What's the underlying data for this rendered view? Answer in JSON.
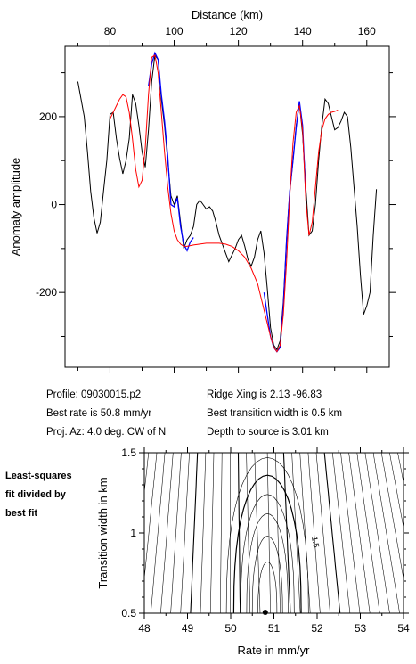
{
  "chart_data": [
    {
      "type": "line",
      "xlabel": "Distance (km)",
      "ylabel": "Anomaly amplitude",
      "xticks": [
        80,
        100,
        120,
        140,
        160
      ],
      "yticks": [
        200,
        0,
        -200
      ],
      "xlim": [
        66,
        167
      ],
      "ylim": [
        -370,
        360
      ],
      "x_axis_position": "top",
      "grid": false,
      "series": [
        {
          "color": "#000000",
          "points": [
            [
              70,
              280
            ],
            [
              72,
              200
            ],
            [
              73,
              120
            ],
            [
              74,
              30
            ],
            [
              75,
              -30
            ],
            [
              76,
              -65
            ],
            [
              77,
              -40
            ],
            [
              78,
              30
            ],
            [
              79,
              100
            ],
            [
              80,
              205
            ],
            [
              81,
              210
            ],
            [
              82,
              150
            ],
            [
              83,
              105
            ],
            [
              84,
              70
            ],
            [
              85,
              100
            ],
            [
              86,
              150
            ],
            [
              87,
              250
            ],
            [
              88,
              230
            ],
            [
              89,
              180
            ],
            [
              90,
              120
            ],
            [
              91,
              85
            ],
            [
              92,
              170
            ],
            [
              93,
              280
            ],
            [
              94,
              340
            ],
            [
              95,
              330
            ],
            [
              96,
              240
            ],
            [
              97,
              180
            ],
            [
              98,
              100
            ],
            [
              99,
              20
            ],
            [
              100,
              0
            ],
            [
              101,
              20
            ],
            [
              102,
              -40
            ],
            [
              103,
              -100
            ],
            [
              104,
              -80
            ],
            [
              105,
              -70
            ],
            [
              106,
              -50
            ],
            [
              107,
              0
            ],
            [
              108,
              10
            ],
            [
              109,
              0
            ],
            [
              110,
              -10
            ],
            [
              111,
              -5
            ],
            [
              112,
              -15
            ],
            [
              113,
              -40
            ],
            [
              114,
              -70
            ],
            [
              115,
              -90
            ],
            [
              116,
              -110
            ],
            [
              117,
              -130
            ],
            [
              118,
              -115
            ],
            [
              119,
              -100
            ],
            [
              120,
              -80
            ],
            [
              121,
              -70
            ],
            [
              122,
              -95
            ],
            [
              123,
              -125
            ],
            [
              124,
              -140
            ],
            [
              125,
              -120
            ],
            [
              126,
              -80
            ],
            [
              127,
              -60
            ],
            [
              128,
              -110
            ],
            [
              129,
              -190
            ],
            [
              130,
              -280
            ],
            [
              131,
              -320
            ],
            [
              132,
              -330
            ],
            [
              133,
              -310
            ],
            [
              134,
              -220
            ],
            [
              135,
              -80
            ],
            [
              136,
              30
            ],
            [
              137,
              100
            ],
            [
              138,
              180
            ],
            [
              139,
              230
            ],
            [
              140,
              160
            ],
            [
              141,
              40
            ],
            [
              142,
              -70
            ],
            [
              143,
              -60
            ],
            [
              144,
              0
            ],
            [
              145,
              100
            ],
            [
              146,
              180
            ],
            [
              147,
              240
            ],
            [
              148,
              230
            ],
            [
              149,
              200
            ],
            [
              150,
              170
            ],
            [
              151,
              175
            ],
            [
              152,
              190
            ],
            [
              153,
              210
            ],
            [
              154,
              200
            ],
            [
              155,
              130
            ],
            [
              156,
              40
            ],
            [
              157,
              -50
            ],
            [
              158,
              -160
            ],
            [
              159,
              -250
            ],
            [
              160,
              -230
            ],
            [
              161,
              -200
            ],
            [
              162,
              -70
            ],
            [
              163,
              35
            ]
          ]
        },
        {
          "color": "#0000ff",
          "points": [
            [
              92,
              270
            ],
            [
              93,
              320
            ],
            [
              94,
              345
            ],
            [
              95,
              330
            ],
            [
              96,
              250
            ],
            [
              97,
              190
            ],
            [
              98,
              110
            ],
            [
              99,
              0
            ],
            [
              100,
              -5
            ],
            [
              101,
              15
            ],
            [
              102,
              -50
            ],
            [
              103,
              -90
            ],
            [
              104,
              -105
            ],
            [
              105,
              -85
            ],
            [
              106,
              -75
            ],
            [
              128,
              -200
            ],
            [
              129,
              -250
            ],
            [
              130,
              -300
            ],
            [
              131,
              -325
            ],
            [
              132,
              -335
            ],
            [
              133,
              -325
            ],
            [
              134,
              -230
            ],
            [
              135,
              -80
            ],
            [
              136,
              30
            ],
            [
              137,
              100
            ],
            [
              138,
              175
            ],
            [
              139,
              235
            ],
            [
              140,
              180
            ],
            [
              141,
              20
            ]
          ]
        },
        {
          "color": "#ff0000",
          "points": [
            [
              80,
              195
            ],
            [
              81,
              210
            ],
            [
              82,
              225
            ],
            [
              83,
              240
            ],
            [
              84,
              250
            ],
            [
              85,
              245
            ],
            [
              86,
              210
            ],
            [
              87,
              150
            ],
            [
              88,
              80
            ],
            [
              89,
              40
            ],
            [
              90,
              55
            ],
            [
              91,
              130
            ],
            [
              92,
              250
            ],
            [
              93,
              335
            ],
            [
              94,
              340
            ],
            [
              95,
              300
            ],
            [
              96,
              210
            ],
            [
              97,
              120
            ],
            [
              98,
              40
            ],
            [
              99,
              -20
            ],
            [
              100,
              -60
            ],
            [
              101,
              -80
            ],
            [
              102,
              -90
            ],
            [
              103,
              -95
            ],
            [
              104,
              -95
            ],
            [
              106,
              -92
            ],
            [
              108,
              -90
            ],
            [
              110,
              -88
            ],
            [
              112,
              -88
            ],
            [
              114,
              -88
            ],
            [
              116,
              -90
            ],
            [
              118,
              -95
            ],
            [
              120,
              -105
            ],
            [
              122,
              -120
            ],
            [
              124,
              -145
            ],
            [
              126,
              -180
            ],
            [
              128,
              -240
            ],
            [
              130,
              -300
            ],
            [
              131,
              -325
            ],
            [
              132,
              -335
            ],
            [
              133,
              -320
            ],
            [
              134,
              -250
            ],
            [
              135,
              -130
            ],
            [
              136,
              20
            ],
            [
              137,
              140
            ],
            [
              138,
              210
            ],
            [
              139,
              225
            ],
            [
              140,
              170
            ],
            [
              141,
              10
            ],
            [
              142,
              -70
            ],
            [
              143,
              -40
            ],
            [
              144,
              40
            ],
            [
              145,
              120
            ],
            [
              146,
              170
            ],
            [
              147,
              195
            ],
            [
              148,
              205
            ],
            [
              149,
              210
            ],
            [
              150,
              212
            ],
            [
              151,
              215
            ]
          ]
        }
      ]
    },
    {
      "type": "contour",
      "xlabel": "Rate in mm/yr",
      "ylabel": "Transition width in km",
      "xticks": [
        48,
        49,
        50,
        51,
        52,
        53,
        54
      ],
      "yticks": [
        0.5,
        1.0,
        1.5
      ],
      "xlim": [
        48,
        54
      ],
      "ylim": [
        0.5,
        1.5
      ],
      "contour_labels": [
        {
          "text": "1.5",
          "x": 51.9,
          "y": 0.94
        }
      ],
      "minimum_point": {
        "x": 50.8,
        "y": 0.5
      },
      "grid": false
    }
  ],
  "info": {
    "profile": "Profile: 09030015.p2",
    "best_rate": "Best rate is 50.8 mm/yr",
    "proj_az": "Proj. Az: 4.0 deg. CW of N",
    "ridge_xing": "Ridge Xing is 2.13 -96.83",
    "best_transition": "Best transition width is 0.5 km",
    "depth": "Depth to source is   3.01 km"
  },
  "side_note": [
    "Least-squares",
    "fit divided by",
    "best fit"
  ]
}
